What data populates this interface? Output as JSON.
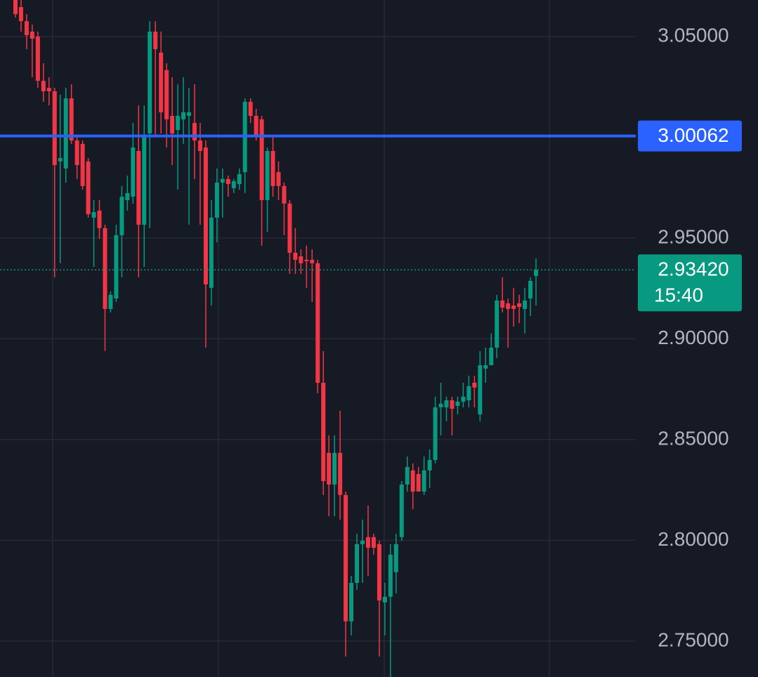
{
  "chart_data": {
    "type": "candlestick",
    "open": [
      3.0681,
      3.0646,
      3.0576,
      3.0524,
      3.05,
      3.028,
      3.0245,
      3.0228,
      2.988,
      2.9845,
      3.0193,
      2.9984,
      2.9967,
      2.988,
      2.9601,
      2.9636,
      2.9549,
      2.9148,
      2.92,
      2.9514,
      2.9688,
      2.9705,
      2.9932,
      2.9566,
      3.0019,
      3.0524,
      3.042,
      3.0333,
      3.0106,
      3.0036,
      3.0089,
      3.0106,
      3.0071,
      2.9984,
      2.9949,
      2.9253,
      2.9601,
      2.9775,
      2.9793,
      2.9747,
      2.9768,
      2.9827,
      3.0176,
      3.0106,
      3.0089,
      2.9688,
      2.9932,
      2.9827,
      2.9758,
      2.9671,
      2.9427,
      2.9409,
      2.9392,
      2.9392,
      2.9375,
      2.8782,
      2.8434,
      2.8277,
      2.8434,
      2.8225,
      2.7598,
      2.7789,
      2.7981,
      2.8016,
      2.8016,
      2.7981,
      2.7692,
      2.772,
      2.7842,
      2.8016,
      2.8277,
      2.8347,
      2.8329,
      2.8242,
      2.8347,
      2.8399,
      2.866,
      2.866,
      2.8695,
      2.8667,
      2.8688,
      2.8695,
      2.8782,
      2.8625,
      2.8852,
      2.8869,
      2.8956,
      2.919,
      2.9176,
      2.9165,
      2.9176,
      2.9148,
      2.92,
      2.9312
    ],
    "high": [
      3.0681,
      3.0681,
      3.0611,
      3.0559,
      3.0524,
      3.0367,
      3.0298,
      3.0245,
      3.0211,
      3.0245,
      3.0263,
      3.0002,
      2.9984,
      2.9897,
      2.9688,
      2.9688,
      2.9566,
      2.9235,
      2.9566,
      2.9758,
      2.981,
      3.0071,
      3.0158,
      3.0158,
      3.0576,
      3.0576,
      3.0524,
      3.0367,
      3.0298,
      3.0263,
      3.0298,
      3.0245,
      3.0263,
      3.0071,
      2.9984,
      2.9688,
      2.9845,
      2.9845,
      2.981,
      2.9793,
      2.9845,
      3.0193,
      3.0193,
      3.0141,
      3.0106,
      2.9949,
      3.0002,
      2.988,
      2.9775,
      2.9688,
      2.9549,
      2.9444,
      2.9462,
      2.9444,
      2.9392,
      2.8939,
      2.8521,
      2.8521,
      2.8643,
      2.8242,
      2.7824,
      2.8033,
      2.8103,
      2.8173,
      2.8033,
      2.7998,
      2.7789,
      2.7981,
      2.8033,
      2.8294,
      2.8416,
      2.8382,
      2.8364,
      2.8416,
      2.8451,
      2.8713,
      2.8782,
      2.8713,
      2.8713,
      2.8713,
      2.8782,
      2.8817,
      2.8817,
      2.8939,
      2.8956,
      2.9026,
      2.9218,
      2.9305,
      2.92,
      2.9253,
      2.9218,
      2.9253,
      2.9305,
      2.9399
    ],
    "low": [
      3.0594,
      3.0524,
      3.0437,
      3.0298,
      3.0245,
      3.0176,
      3.0158,
      2.9305,
      2.9375,
      2.9775,
      2.9967,
      2.9793,
      2.974,
      2.9601,
      2.9357,
      2.9496,
      2.8939,
      2.9131,
      2.9183,
      2.9305,
      2.9636,
      2.9671,
      2.9305,
      2.9357,
      2.9549,
      3.0002,
      3.0019,
      2.9949,
      2.9862,
      2.974,
      2.9967,
      2.9566,
      2.9793,
      2.9566,
      2.8956,
      2.9165,
      2.9479,
      2.9601,
      2.9705,
      2.9723,
      2.974,
      2.9723,
      3.0071,
      2.9984,
      2.9462,
      2.9531,
      2.9705,
      2.9688,
      2.9514,
      2.9322,
      2.9322,
      2.9322,
      2.9253,
      2.9183,
      2.873,
      2.8225,
      2.812,
      2.812,
      2.8103,
      2.7423,
      2.7528,
      2.7754,
      2.7789,
      2.7824,
      2.7929,
      2.7423,
      2.7528,
      2.7322,
      2.7737,
      2.7998,
      2.8242,
      2.8155,
      2.8242,
      2.8225,
      2.826,
      2.8382,
      2.8521,
      2.8591,
      2.8521,
      2.8625,
      2.866,
      2.866,
      2.866,
      2.8591,
      2.8782,
      2.8869,
      2.8904,
      2.9131,
      2.8956,
      2.9061,
      2.9078,
      2.9026,
      2.9113,
      2.9165
    ],
    "close": [
      3.0611,
      3.0576,
      3.0507,
      3.0489,
      3.028,
      3.0228,
      3.0228,
      2.9862,
      2.9897,
      3.0193,
      2.9984,
      2.9862,
      2.9758,
      2.9618,
      2.9629,
      2.9549,
      2.9148,
      2.9218,
      2.9514,
      2.9705,
      2.9723,
      2.9949,
      2.9566,
      3.0002,
      3.0524,
      3.0437,
      3.0124,
      3.0089,
      3.0019,
      3.0106,
      3.0124,
      3.0124,
      2.9984,
      2.9932,
      2.927,
      2.9601,
      2.9775,
      2.9793,
      2.9768,
      2.9782,
      2.9817,
      3.0176,
      3.0106,
      3.0002,
      2.9688,
      2.9932,
      2.9758,
      2.9758,
      2.9671,
      2.9427,
      2.9392,
      2.9375,
      2.9385,
      2.9375,
      2.8782,
      2.8294,
      2.8277,
      2.8434,
      2.8225,
      2.7598,
      2.7789,
      2.7981,
      2.7998,
      2.7963,
      2.7963,
      2.7702,
      2.772,
      2.7929,
      2.7981,
      2.8277,
      2.8364,
      2.8242,
      2.8242,
      2.8347,
      2.8399,
      2.866,
      2.8678,
      2.8695,
      2.8653,
      2.8688,
      2.8713,
      2.8765,
      2.8758,
      2.8869,
      2.8869,
      2.8956,
      2.919,
      2.9155,
      2.9148,
      2.9148,
      2.9158,
      2.919,
      2.9287,
      2.9342
    ],
    "up_color": "#089981",
    "down_color": "#f23645",
    "ylim": [
      2.7322,
      3.0681
    ],
    "yticks": [
      {
        "value": 2.75,
        "label": "2.75000"
      },
      {
        "value": 2.8,
        "label": "2.80000"
      },
      {
        "value": 2.85,
        "label": "2.85000"
      },
      {
        "value": 2.9,
        "label": "2.90000"
      },
      {
        "value": 2.95,
        "label": "2.95000"
      },
      {
        "value": 3.05,
        "label": "3.05000"
      }
    ],
    "grid": true,
    "hline": {
      "value": 3.00062,
      "color": "#2962ff"
    },
    "last_price": {
      "value": 2.9342,
      "label": "2.93420",
      "color": "#089981"
    },
    "countdown": "15:40"
  }
}
